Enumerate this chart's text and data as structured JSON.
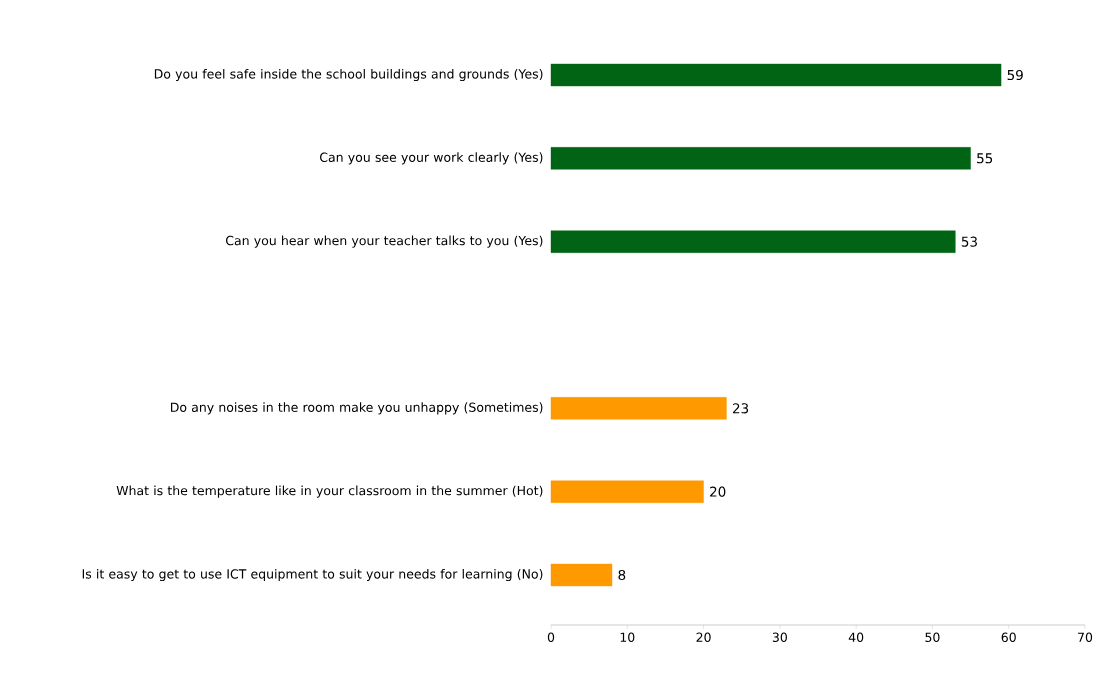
{
  "chart_data": {
    "type": "bar",
    "orientation": "horizontal",
    "categories": [
      "Do you feel safe inside the school buildings and grounds  (Yes)",
      "Can you see your work clearly  (Yes)",
      "Can you hear when your teacher talks to you (Yes)",
      null,
      "Do any noises in the room make you unhappy (Sometimes)",
      "What is the temperature like in your classroom in the summer (Hot)",
      "Is it easy to get to use ICT equipment to suit your needs for learning (No)"
    ],
    "values": [
      59,
      55,
      53,
      null,
      23,
      20,
      8
    ],
    "colors": [
      "#006414",
      "#006414",
      "#006414",
      "#006414",
      "#ff9900",
      "#ff9900",
      "#ff9900"
    ],
    "xlim": [
      0,
      70
    ],
    "xticks": [
      0,
      10,
      20,
      30,
      40,
      50,
      60,
      70
    ],
    "data_labels": true,
    "grid": false
  }
}
